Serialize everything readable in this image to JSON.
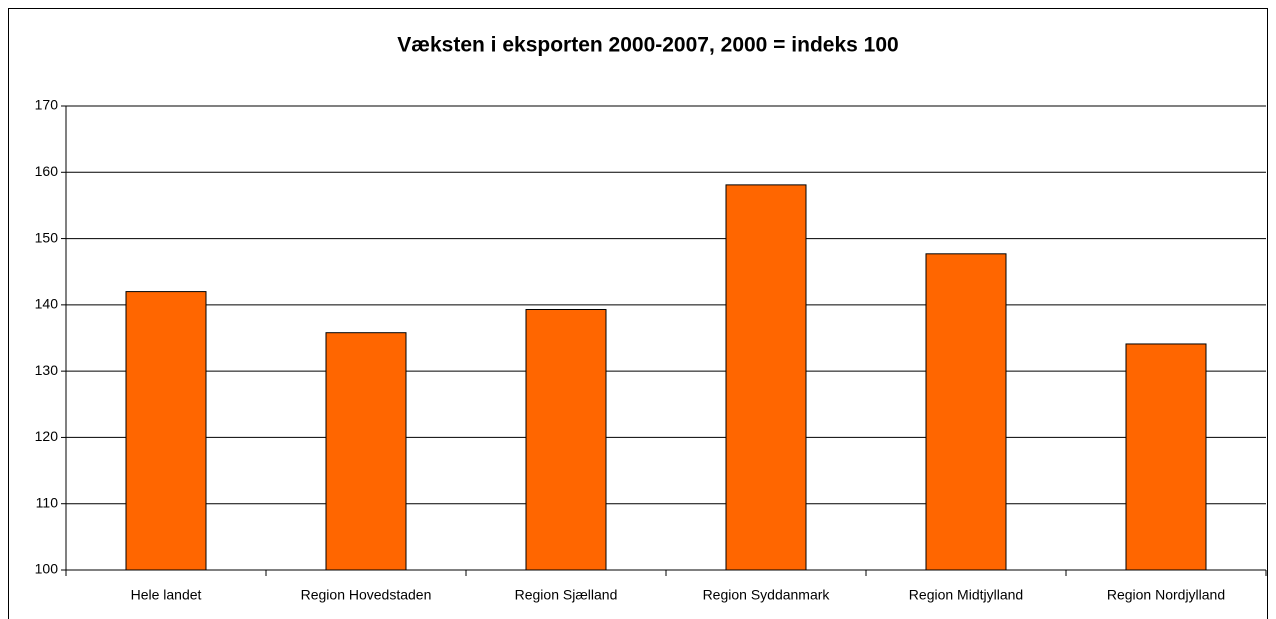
{
  "chart_data": {
    "type": "bar",
    "title": "Væksten i eksporten 2000-2007, 2000 = indeks 100",
    "categories": [
      "Hele landet",
      "Region Hovedstaden",
      "Region Sjælland",
      "Region Syddanmark",
      "Region Midtjylland",
      "Region Nordjylland"
    ],
    "values": [
      142,
      135.8,
      139.3,
      158.1,
      147.7,
      134.1
    ],
    "color": "#ff6600",
    "ylim": [
      100,
      170
    ],
    "yticks": [
      100,
      110,
      120,
      130,
      140,
      150,
      160,
      170
    ],
    "grid": true
  }
}
